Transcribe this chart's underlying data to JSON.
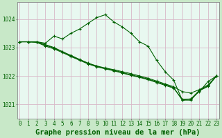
{
  "title": "Graphe pression niveau de la mer (hPa)",
  "bg_color": "#c8e8c8",
  "plot_bg_color": "#e8f8f0",
  "grid_color": "#d8b8c8",
  "line_color": "#006000",
  "x_labels": [
    "0",
    "1",
    "2",
    "3",
    "4",
    "5",
    "6",
    "7",
    "8",
    "9",
    "10",
    "11",
    "12",
    "13",
    "14",
    "15",
    "16",
    "17",
    "18",
    "19",
    "20",
    "21",
    "22",
    "23"
  ],
  "ylim": [
    1020.5,
    1024.6
  ],
  "yticks": [
    1021,
    1022,
    1023,
    1024
  ],
  "lines": [
    [
      1023.2,
      1023.2,
      1023.2,
      1023.15,
      1023.4,
      1023.3,
      1023.5,
      1023.65,
      1023.85,
      1024.05,
      1024.15,
      1023.9,
      1023.72,
      1023.5,
      1023.2,
      1023.05,
      1022.55,
      1022.15,
      1021.85,
      1021.15,
      1021.2,
      1021.45,
      1021.8,
      1022.0
    ],
    [
      1023.2,
      1023.2,
      1023.2,
      1023.1,
      1023.0,
      1022.85,
      1022.72,
      1022.58,
      1022.45,
      1022.35,
      1022.28,
      1022.22,
      1022.15,
      1022.08,
      1022.0,
      1021.92,
      1021.82,
      1021.72,
      1021.62,
      1021.45,
      1021.4,
      1021.52,
      1021.68,
      1022.0
    ],
    [
      1023.2,
      1023.2,
      1023.18,
      1023.05,
      1022.95,
      1022.82,
      1022.68,
      1022.55,
      1022.42,
      1022.32,
      1022.25,
      1022.18,
      1022.1,
      1022.02,
      1021.95,
      1021.87,
      1021.77,
      1021.67,
      1021.57,
      1021.18,
      1021.18,
      1021.5,
      1021.65,
      1022.0
    ],
    [
      1023.2,
      1023.2,
      1023.18,
      1023.08,
      1022.98,
      1022.85,
      1022.7,
      1022.57,
      1022.44,
      1022.34,
      1022.26,
      1022.2,
      1022.12,
      1022.04,
      1021.97,
      1021.89,
      1021.79,
      1021.69,
      1021.59,
      1021.15,
      1021.15,
      1021.48,
      1021.63,
      1022.0
    ]
  ],
  "title_fontsize": 7.5,
  "tick_fontsize": 5.5
}
